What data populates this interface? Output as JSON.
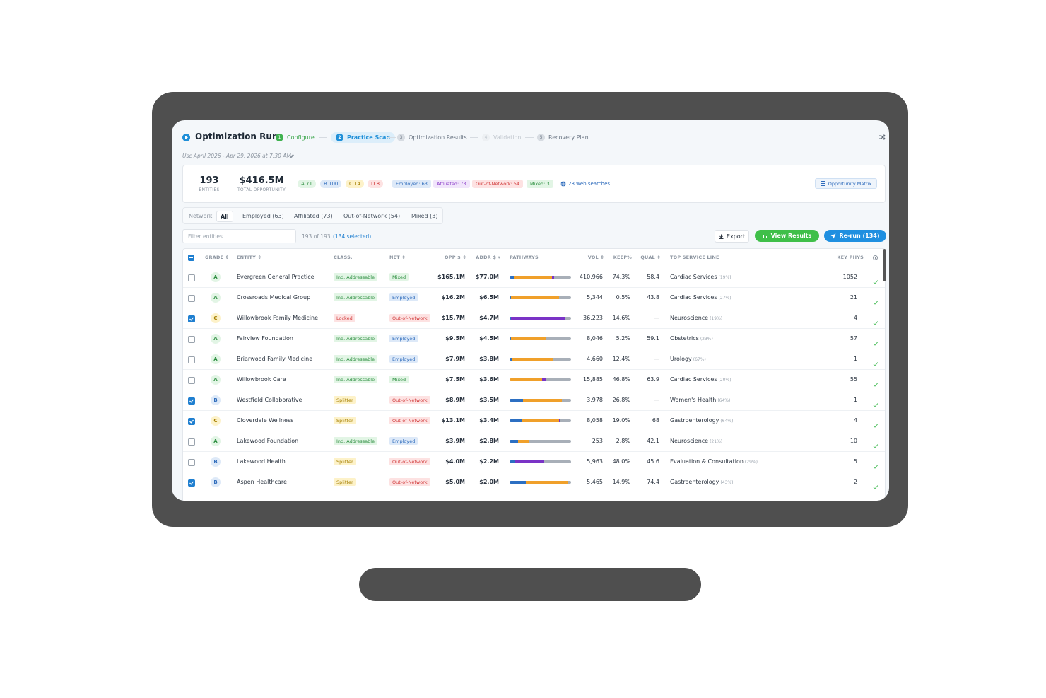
{
  "header": {
    "title": "Optimization Run",
    "steps": [
      {
        "number": "1",
        "label": "Configure"
      },
      {
        "number": "2",
        "label": "Practice Scan"
      },
      {
        "number": "3",
        "label": "Optimization Results"
      },
      {
        "number": "4",
        "label": "Validation"
      },
      {
        "number": "5",
        "label": "Recovery Plan"
      }
    ],
    "subtitle": "Usc April 2026 - Apr 29, 2026 at 7:30 AM"
  },
  "summary": {
    "entities": {
      "value": "193",
      "label": "ENTITIES"
    },
    "opportunity": {
      "value": "$416.5M",
      "label": "TOTAL OPPORTUNITY"
    },
    "grades": [
      "A 71",
      "B 100",
      "C 14",
      "D 8"
    ],
    "networks": [
      "Employed: 63",
      "Affiliated: 73",
      "Out-of-Network: 54",
      "Mixed: 3"
    ],
    "web_searches": "28 web searches",
    "matrix_button": "Opportunity Matrix"
  },
  "tabs": {
    "label": "Network",
    "items": [
      "All",
      "Employed (63)",
      "Affiliated (73)",
      "Out-of-Network (54)",
      "Mixed (3)"
    ]
  },
  "toolbar": {
    "filter_placeholder": "Filter entities...",
    "count": "193 of 193",
    "selected": "(134 selected)",
    "buttons": [
      "Export",
      "View Results",
      "Re-run (134)"
    ]
  },
  "table": {
    "headers": [
      "GRADE ⇕",
      "ENTITY ⇕",
      "CLASS.",
      "NET ⇕",
      "OPP $ ⇕",
      "ADDR $ ▾",
      "PATHWAYS",
      "VOL ⇕",
      "KEEP%",
      "QUAL ⇕",
      "TOP SERVICE LINE",
      "KEY PHYS"
    ],
    "pathway_colors": [
      "#2c6fc2",
      "#f0a02a",
      "#7a33c6",
      "#a8afb8"
    ],
    "rows": [
      {
        "selected": false,
        "grade": "A",
        "entity": "Evergreen General Practice",
        "class": "Ind. Addressable",
        "network": "Mixed",
        "opp": "$165.1M",
        "addr": "$77.0M",
        "pathways": [
          7,
          62,
          3,
          28
        ],
        "vol": "410,966",
        "keep": "74.3%",
        "qual": "58.4",
        "service": "Cardiac Services",
        "service_share": "(19%)",
        "key_phys": "1052"
      },
      {
        "selected": false,
        "grade": "A",
        "entity": "Crossroads Medical Group",
        "class": "Ind. Addressable",
        "network": "Employed",
        "opp": "$16.2M",
        "addr": "$6.5M",
        "pathways": [
          2,
          78,
          0,
          20
        ],
        "vol": "5,344",
        "keep": "0.5%",
        "qual": "43.8",
        "service": "Cardiac Services",
        "service_share": "(27%)",
        "key_phys": "21"
      },
      {
        "selected": true,
        "grade": "C",
        "entity": "Willowbrook Family Medicine",
        "class": "Locked",
        "network": "Out-of-Network",
        "opp": "$15.7M",
        "addr": "$4.7M",
        "pathways": [
          2,
          0,
          88,
          10
        ],
        "vol": "36,223",
        "keep": "14.6%",
        "qual": "—",
        "service": "Neuroscience",
        "service_share": "(19%)",
        "key_phys": "4"
      },
      {
        "selected": false,
        "grade": "A",
        "entity": "Fairview Foundation",
        "class": "Ind. Addressable",
        "network": "Employed",
        "opp": "$9.5M",
        "addr": "$4.5M",
        "pathways": [
          2,
          57,
          0,
          41
        ],
        "vol": "8,046",
        "keep": "5.2%",
        "qual": "59.1",
        "service": "Obstetrics",
        "service_share": "(23%)",
        "key_phys": "57"
      },
      {
        "selected": false,
        "grade": "A",
        "entity": "Briarwood Family Medicine",
        "class": "Ind. Addressable",
        "network": "Employed",
        "opp": "$7.9M",
        "addr": "$3.8M",
        "pathways": [
          3,
          68,
          0,
          29
        ],
        "vol": "4,660",
        "keep": "12.4%",
        "qual": "—",
        "service": "Urology",
        "service_share": "(67%)",
        "key_phys": "1"
      },
      {
        "selected": false,
        "grade": "A",
        "entity": "Willowbrook Care",
        "class": "Ind. Addressable",
        "network": "Mixed",
        "opp": "$7.5M",
        "addr": "$3.6M",
        "pathways": [
          0,
          53,
          6,
          41
        ],
        "vol": "15,885",
        "keep": "46.8%",
        "qual": "63.9",
        "service": "Cardiac Services",
        "service_share": "(20%)",
        "key_phys": "55"
      },
      {
        "selected": true,
        "grade": "B",
        "entity": "Westfield Collaborative",
        "class": "Splitter",
        "network": "Out-of-Network",
        "opp": "$8.9M",
        "addr": "$3.5M",
        "pathways": [
          22,
          63,
          0,
          15
        ],
        "vol": "3,978",
        "keep": "26.8%",
        "qual": "—",
        "service": "Women's Health",
        "service_share": "(64%)",
        "key_phys": "1"
      },
      {
        "selected": true,
        "grade": "C",
        "entity": "Cloverdale Wellness",
        "class": "Splitter",
        "network": "Out-of-Network",
        "opp": "$13.1M",
        "addr": "$3.4M",
        "pathways": [
          19,
          62,
          2,
          17
        ],
        "vol": "8,058",
        "keep": "19.0%",
        "qual": "68",
        "service": "Gastroenterology",
        "service_share": "(64%)",
        "key_phys": "4"
      },
      {
        "selected": false,
        "grade": "A",
        "entity": "Lakewood Foundation",
        "class": "Ind. Addressable",
        "network": "Employed",
        "opp": "$3.9M",
        "addr": "$2.8M",
        "pathways": [
          14,
          17,
          0,
          69
        ],
        "vol": "253",
        "keep": "2.8%",
        "qual": "42.1",
        "service": "Neuroscience",
        "service_share": "(21%)",
        "key_phys": "10"
      },
      {
        "selected": false,
        "grade": "B",
        "entity": "Lakewood Health",
        "class": "Splitter",
        "network": "Out-of-Network",
        "opp": "$4.0M",
        "addr": "$2.2M",
        "pathways": [
          8,
          0,
          48,
          44
        ],
        "vol": "5,963",
        "keep": "48.0%",
        "qual": "45.6",
        "service": "Evaluation & Consultation",
        "service_share": "(29%)",
        "key_phys": "5"
      },
      {
        "selected": true,
        "grade": "B",
        "entity": "Aspen Healthcare",
        "class": "Splitter",
        "network": "Out-of-Network",
        "opp": "$5.0M",
        "addr": "$2.0M",
        "pathways": [
          27,
          68,
          0,
          5
        ],
        "vol": "5,465",
        "keep": "14.9%",
        "qual": "74.4",
        "service": "Gastroenterology",
        "service_share": "(43%)",
        "key_phys": "2"
      }
    ]
  }
}
